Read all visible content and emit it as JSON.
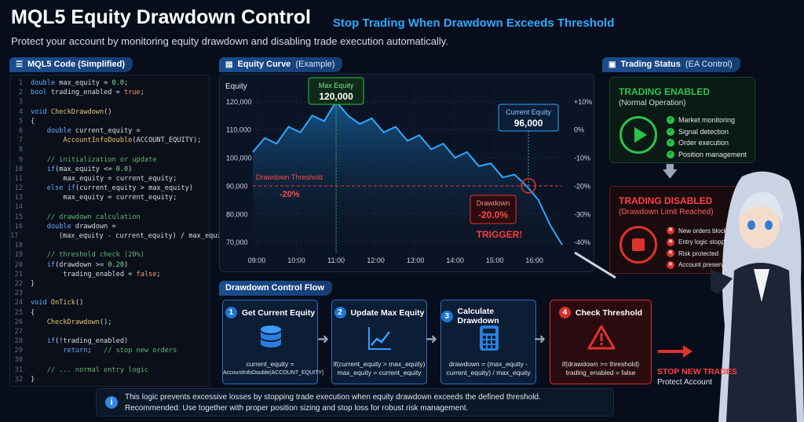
{
  "header": {
    "title": "MQL5 Equity Drawdown Control",
    "subtitle": "Stop Trading When Drawdown Exceeds Threshold",
    "description": "Protect your account by monitoring equity drawdown and disabling trade execution automatically."
  },
  "code_panel": {
    "tab_label": "MQL5 Code (Simplified)",
    "lines": [
      "double max_equity = 0.0;",
      "bool trading_enabled = true;",
      "",
      "void CheckDrawdown()",
      "{",
      "    double current_equity =",
      "        AccountInfoDouble(ACCOUNT_EQUITY);",
      "",
      "    // initialization or update",
      "    if(max_equity <= 0.0)",
      "        max_equity = current_equity;",
      "    else if(current_equity > max_equity)",
      "        max_equity = current_equity;",
      "",
      "    // drawdown calculation",
      "    double drawdown =",
      "        (max_equity - current_equity) / max_equity;",
      "",
      "    // threshold check (20%)",
      "    if(drawdown >= 0.20)",
      "        trading_enabled = false;",
      "}",
      "",
      "void OnTick()",
      "{",
      "    CheckDrawdown();",
      "",
      "    if(!trading_enabled)",
      "        return;   // stop new orders",
      "",
      "    // ... normal entry logic",
      "}"
    ]
  },
  "equity_panel": {
    "tab_label": "Equity Curve",
    "tab_suffix": "(Example)",
    "max_equity_label": "Max Equity",
    "max_equity_value": "120,000",
    "current_equity_label": "Current Equity",
    "current_equity_value": "96,000",
    "threshold_label": "Drawdown Threshold",
    "threshold_value": "-20%",
    "drawdown_label": "Drawdown",
    "drawdown_value": "-20.0%",
    "trigger_label": "TRIGGER!"
  },
  "chart_data": {
    "type": "line",
    "ylabel": "Equity",
    "y_ticks": [
      "120,000",
      "110,000",
      "100,000",
      "90,000",
      "80,000",
      "70,000"
    ],
    "y_right_ticks": [
      "+10%",
      "0%",
      "-10%",
      "-20%",
      "-30%",
      "-40%"
    ],
    "x_ticks": [
      "09:00",
      "10:00",
      "11:00",
      "12:00",
      "13:00",
      "14:00",
      "15:00",
      "16:00"
    ],
    "ylim": [
      66000,
      124000
    ],
    "threshold": 90000,
    "series": [
      {
        "x": [
          0.0,
          0.3,
          0.6,
          0.9,
          1.2,
          1.5,
          1.8,
          2.1,
          2.4,
          2.7,
          3.0,
          3.3,
          3.6,
          3.9,
          4.2,
          4.5,
          4.8,
          5.1,
          5.4,
          5.7,
          6.0,
          6.3,
          6.6,
          6.9,
          7.2,
          7.5,
          7.8
        ],
        "y": [
          102000,
          107000,
          105000,
          111000,
          109000,
          115000,
          113000,
          120000,
          115000,
          112000,
          114000,
          109000,
          111000,
          106000,
          108000,
          103000,
          105000,
          100000,
          102000,
          97000,
          98000,
          93000,
          94000,
          90000,
          85000,
          76000,
          69000
        ]
      }
    ]
  },
  "status_panel": {
    "tab_label": "Trading Status",
    "tab_suffix": "(EA Control)",
    "enabled_title": "TRADING ENABLED",
    "enabled_sub": "(Normal Operation)",
    "enabled_items": [
      "Market monitoring",
      "Signal detection",
      "Order execution",
      "Position management"
    ],
    "disabled_title": "TRADING DISABLED",
    "disabled_sub": "(Drawdown Limit Reached)",
    "disabled_items": [
      "New orders blocked",
      "Entry logic stopped",
      "Risk protected",
      "Account preserved"
    ]
  },
  "flow_panel": {
    "tab_label": "Drawdown Control Flow",
    "steps": [
      {
        "num": "1",
        "title": "Get Current Equity",
        "text": "current_equity =\nAccountInfoDouble(ACCOUNT_EQUITY)",
        "icon": "database-icon"
      },
      {
        "num": "2",
        "title": "Update Max Equity",
        "text": "if(current_equity > max_equity)\nmax_equity = current_equity",
        "icon": "chart-icon"
      },
      {
        "num": "3",
        "title": "Calculate Drawdown",
        "text": "drawdown = (max_equity -\ncurrent_equity) / max_equity",
        "icon": "calculator-icon"
      },
      {
        "num": "4",
        "title": "Check Threshold",
        "text": "if(drawdown >= threshold)\ntrading_enabled = false",
        "icon": "warning-icon"
      }
    ],
    "result_title": "STOP NEW TRADES",
    "result_sub": "Protect Account"
  },
  "footer": {
    "line1": "This logic prevents excessive losses by stopping trade execution when equity drawdown exceeds the defined threshold.",
    "line2": "Recommended: Use together with proper position sizing and stop loss for robust risk management."
  },
  "colors": {
    "accent": "#2fa9ff",
    "enabled": "#2cc24c",
    "disabled": "#e0322c"
  }
}
